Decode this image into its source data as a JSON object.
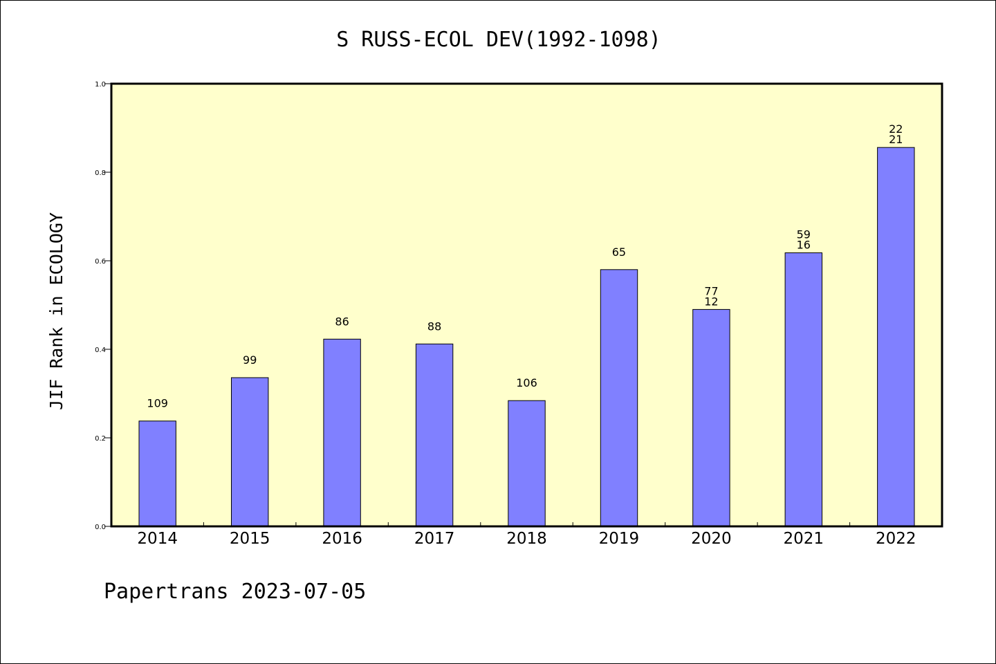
{
  "chart_data": {
    "type": "bar",
    "title": "S RUSS-ECOL DEV(1992-1098)",
    "ylabel": "JIF Rank in ECOLOGY",
    "xlabel": "",
    "ylim": [
      0.0,
      1.0
    ],
    "yticks": [
      "0.0",
      "0.2",
      "0.4",
      "0.6",
      "0.8",
      "1.0"
    ],
    "ytick_values": [
      0.0,
      0.2,
      0.4,
      0.6,
      0.8,
      1.0
    ],
    "grid": false,
    "categories": [
      "2014",
      "2015",
      "2016",
      "2017",
      "2018",
      "2019",
      "2020",
      "2021",
      "2022"
    ],
    "values": [
      0.238,
      0.336,
      0.423,
      0.412,
      0.284,
      0.58,
      0.49,
      0.618,
      0.856
    ],
    "data_labels": [
      [
        "109"
      ],
      [
        "99"
      ],
      [
        "86"
      ],
      [
        "88"
      ],
      [
        "106"
      ],
      [
        "65"
      ],
      [
        "77",
        "12"
      ],
      [
        "59",
        "16"
      ],
      [
        "22",
        "21"
      ]
    ],
    "colors": {
      "plot_background": "#ffffcc",
      "bar_fill": "#8080ff",
      "bar_stroke": "#000000"
    }
  },
  "footer": "Papertrans 2023-07-05"
}
